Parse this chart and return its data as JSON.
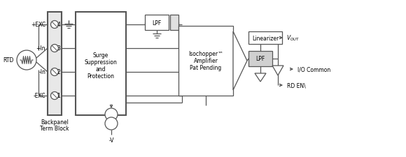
{
  "lc": "#555555",
  "pin_labels": [
    "+EXC",
    "+In",
    "-In",
    "-EXC"
  ],
  "pin_numbers": [
    "4",
    "3",
    "2",
    "1"
  ],
  "backpanel_lines": [
    "Backpanel",
    "Term Block"
  ],
  "rtd_label": "RTD",
  "surge_lines": [
    "Surge",
    "Suppression",
    "and",
    "Protection"
  ],
  "iso_lines": [
    "Isochopper™",
    "Amplifier",
    "Pat Pending"
  ],
  "lpf": "LPF",
  "linearizer": "Linearizer",
  "vout": "V_{OUT}",
  "io_common": "I/O Common",
  "rd_en": "RD EN\\",
  "minus_v": "-V",
  "fss": 5.5,
  "fs": 6.0,
  "lw": 0.9
}
